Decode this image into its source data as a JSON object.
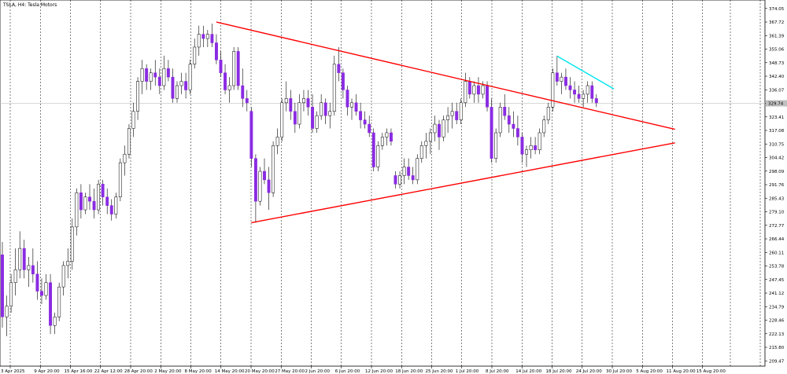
{
  "chart_data": {
    "type": "candlestick",
    "title": "TSLA, H4: Tesla Motors",
    "ylim": [
      207.0,
      378.0
    ],
    "y_ticks": [
      209.47,
      215.8,
      222.13,
      228.46,
      234.79,
      241.12,
      247.45,
      253.78,
      260.11,
      266.44,
      272.77,
      279.1,
      285.43,
      291.76,
      298.09,
      304.42,
      310.75,
      317.08,
      323.41,
      329.74,
      336.07,
      342.4,
      348.73,
      355.06,
      361.39,
      367.72,
      374.05
    ],
    "x_ticks": [
      "3 Apr 2025",
      "9 Apr 20:00",
      "15 Apr 16:00",
      "22 Apr 12:00",
      "28 Apr 20:00",
      "2 May 20:00",
      "8 May 20:00",
      "14 May 20:00",
      "20 May 20:00",
      "27 May 20:00",
      "2 Jun 20:00",
      "6 Jun 20:00",
      "12 Jun 20:00",
      "18 Jun 20:00",
      "25 Jun 20:00",
      "1 Jul 20:00",
      "8 Jul 20:00",
      "14 Jul 20:00",
      "18 Jul 20:00",
      "24 Jul 20:00",
      "30 Jul 20:00",
      "5 Aug 20:00",
      "11 Aug 20:00",
      "15 Aug 20:00"
    ],
    "current_price": 329.74,
    "bull_color": "#ffffff",
    "bear_color": "#8a2be2",
    "wick_color": "#000000",
    "trendline_color_red": "#ff0000",
    "trendline_color_cyan": "#00e5ee",
    "candles": [
      {
        "t": 0,
        "o": 259,
        "h": 265,
        "l": 225,
        "c": 230
      },
      {
        "t": 1,
        "o": 230,
        "h": 240,
        "l": 221,
        "c": 235
      },
      {
        "t": 2,
        "o": 235,
        "h": 250,
        "l": 232,
        "c": 246
      },
      {
        "t": 3,
        "o": 246,
        "h": 262,
        "l": 240,
        "c": 252
      },
      {
        "t": 4,
        "o": 252,
        "h": 270,
        "l": 248,
        "c": 262
      },
      {
        "t": 5,
        "o": 262,
        "h": 266,
        "l": 248,
        "c": 252
      },
      {
        "t": 6,
        "o": 252,
        "h": 258,
        "l": 244,
        "c": 254
      },
      {
        "t": 7,
        "o": 254,
        "h": 262,
        "l": 246,
        "c": 250
      },
      {
        "t": 8,
        "o": 250,
        "h": 256,
        "l": 238,
        "c": 242
      },
      {
        "t": 9,
        "o": 242,
        "h": 248,
        "l": 236,
        "c": 240
      },
      {
        "t": 10,
        "o": 240,
        "h": 250,
        "l": 238,
        "c": 246
      },
      {
        "t": 11,
        "o": 246,
        "h": 250,
        "l": 222,
        "c": 226
      },
      {
        "t": 12,
        "o": 226,
        "h": 232,
        "l": 222,
        "c": 230
      },
      {
        "t": 13,
        "o": 230,
        "h": 246,
        "l": 228,
        "c": 244
      },
      {
        "t": 14,
        "o": 244,
        "h": 256,
        "l": 240,
        "c": 254
      },
      {
        "t": 15,
        "o": 254,
        "h": 262,
        "l": 248,
        "c": 256
      },
      {
        "t": 16,
        "o": 256,
        "h": 276,
        "l": 252,
        "c": 272
      },
      {
        "t": 17,
        "o": 272,
        "h": 290,
        "l": 268,
        "c": 288
      },
      {
        "t": 18,
        "o": 288,
        "h": 292,
        "l": 276,
        "c": 280
      },
      {
        "t": 19,
        "o": 280,
        "h": 288,
        "l": 278,
        "c": 286
      },
      {
        "t": 20,
        "o": 286,
        "h": 292,
        "l": 280,
        "c": 284
      },
      {
        "t": 21,
        "o": 284,
        "h": 290,
        "l": 276,
        "c": 280
      },
      {
        "t": 22,
        "o": 280,
        "h": 294,
        "l": 278,
        "c": 292
      },
      {
        "t": 23,
        "o": 292,
        "h": 294,
        "l": 282,
        "c": 286
      },
      {
        "t": 24,
        "o": 286,
        "h": 290,
        "l": 278,
        "c": 282
      },
      {
        "t": 25,
        "o": 282,
        "h": 285,
        "l": 275,
        "c": 278
      },
      {
        "t": 26,
        "o": 278,
        "h": 288,
        "l": 276,
        "c": 286
      },
      {
        "t": 27,
        "o": 286,
        "h": 304,
        "l": 284,
        "c": 302
      },
      {
        "t": 28,
        "o": 302,
        "h": 310,
        "l": 296,
        "c": 306
      },
      {
        "t": 29,
        "o": 306,
        "h": 320,
        "l": 304,
        "c": 318
      },
      {
        "t": 30,
        "o": 318,
        "h": 330,
        "l": 314,
        "c": 326
      },
      {
        "t": 31,
        "o": 326,
        "h": 342,
        "l": 322,
        "c": 340
      },
      {
        "t": 32,
        "o": 340,
        "h": 350,
        "l": 334,
        "c": 346
      },
      {
        "t": 33,
        "o": 346,
        "h": 348,
        "l": 336,
        "c": 340
      },
      {
        "t": 34,
        "o": 340,
        "h": 346,
        "l": 336,
        "c": 344
      },
      {
        "t": 35,
        "o": 344,
        "h": 350,
        "l": 338,
        "c": 342
      },
      {
        "t": 36,
        "o": 342,
        "h": 346,
        "l": 334,
        "c": 338
      },
      {
        "t": 37,
        "o": 338,
        "h": 352,
        "l": 336,
        "c": 346
      },
      {
        "t": 38,
        "o": 346,
        "h": 350,
        "l": 340,
        "c": 342
      },
      {
        "t": 39,
        "o": 342,
        "h": 346,
        "l": 330,
        "c": 332
      },
      {
        "t": 40,
        "o": 332,
        "h": 340,
        "l": 330,
        "c": 338
      },
      {
        "t": 41,
        "o": 338,
        "h": 344,
        "l": 334,
        "c": 340
      },
      {
        "t": 42,
        "o": 340,
        "h": 344,
        "l": 332,
        "c": 336
      },
      {
        "t": 43,
        "o": 336,
        "h": 350,
        "l": 334,
        "c": 348
      },
      {
        "t": 44,
        "o": 348,
        "h": 360,
        "l": 346,
        "c": 356
      },
      {
        "t": 45,
        "o": 356,
        "h": 366,
        "l": 352,
        "c": 362
      },
      {
        "t": 46,
        "o": 362,
        "h": 366,
        "l": 356,
        "c": 360
      },
      {
        "t": 47,
        "o": 360,
        "h": 364,
        "l": 356,
        "c": 362
      },
      {
        "t": 48,
        "o": 362,
        "h": 367,
        "l": 356,
        "c": 358
      },
      {
        "t": 49,
        "o": 358,
        "h": 362,
        "l": 348,
        "c": 350
      },
      {
        "t": 50,
        "o": 350,
        "h": 354,
        "l": 342,
        "c": 344
      },
      {
        "t": 51,
        "o": 344,
        "h": 348,
        "l": 334,
        "c": 336
      },
      {
        "t": 52,
        "o": 336,
        "h": 342,
        "l": 330,
        "c": 338
      },
      {
        "t": 53,
        "o": 338,
        "h": 356,
        "l": 336,
        "c": 354
      },
      {
        "t": 54,
        "o": 354,
        "h": 356,
        "l": 336,
        "c": 338
      },
      {
        "t": 55,
        "o": 338,
        "h": 346,
        "l": 328,
        "c": 332
      },
      {
        "t": 56,
        "o": 332,
        "h": 336,
        "l": 326,
        "c": 330
      },
      {
        "t": 57,
        "o": 326,
        "h": 328,
        "l": 300,
        "c": 304
      },
      {
        "t": 58,
        "o": 304,
        "h": 306,
        "l": 274,
        "c": 284
      },
      {
        "t": 59,
        "o": 284,
        "h": 300,
        "l": 282,
        "c": 298
      },
      {
        "t": 60,
        "o": 298,
        "h": 304,
        "l": 292,
        "c": 294
      },
      {
        "t": 61,
        "o": 294,
        "h": 300,
        "l": 280,
        "c": 288
      },
      {
        "t": 62,
        "o": 288,
        "h": 312,
        "l": 286,
        "c": 310
      },
      {
        "t": 63,
        "o": 310,
        "h": 318,
        "l": 306,
        "c": 314
      },
      {
        "t": 64,
        "o": 314,
        "h": 332,
        "l": 312,
        "c": 330
      },
      {
        "t": 65,
        "o": 330,
        "h": 340,
        "l": 326,
        "c": 332
      },
      {
        "t": 66,
        "o": 332,
        "h": 336,
        "l": 322,
        "c": 326
      },
      {
        "t": 67,
        "o": 326,
        "h": 330,
        "l": 316,
        "c": 320
      },
      {
        "t": 68,
        "o": 320,
        "h": 334,
        "l": 318,
        "c": 330
      },
      {
        "t": 69,
        "o": 330,
        "h": 336,
        "l": 326,
        "c": 332
      },
      {
        "t": 70,
        "o": 332,
        "h": 336,
        "l": 324,
        "c": 328
      },
      {
        "t": 71,
        "o": 328,
        "h": 334,
        "l": 316,
        "c": 318
      },
      {
        "t": 72,
        "o": 318,
        "h": 326,
        "l": 316,
        "c": 324
      },
      {
        "t": 73,
        "o": 324,
        "h": 334,
        "l": 322,
        "c": 330
      },
      {
        "t": 74,
        "o": 330,
        "h": 332,
        "l": 320,
        "c": 324
      },
      {
        "t": 75,
        "o": 324,
        "h": 330,
        "l": 318,
        "c": 326
      },
      {
        "t": 76,
        "o": 326,
        "h": 352,
        "l": 324,
        "c": 348
      },
      {
        "t": 77,
        "o": 348,
        "h": 356,
        "l": 340,
        "c": 344
      },
      {
        "t": 78,
        "o": 344,
        "h": 346,
        "l": 332,
        "c": 336
      },
      {
        "t": 79,
        "o": 336,
        "h": 338,
        "l": 324,
        "c": 328
      },
      {
        "t": 80,
        "o": 328,
        "h": 332,
        "l": 322,
        "c": 330
      },
      {
        "t": 81,
        "o": 330,
        "h": 334,
        "l": 324,
        "c": 326
      },
      {
        "t": 82,
        "o": 326,
        "h": 330,
        "l": 318,
        "c": 322
      },
      {
        "t": 83,
        "o": 322,
        "h": 326,
        "l": 318,
        "c": 320
      },
      {
        "t": 84,
        "o": 320,
        "h": 324,
        "l": 314,
        "c": 316
      },
      {
        "t": 85,
        "o": 316,
        "h": 318,
        "l": 298,
        "c": 300
      },
      {
        "t": 86,
        "o": 300,
        "h": 312,
        "l": 298,
        "c": 310
      },
      {
        "t": 87,
        "o": 310,
        "h": 316,
        "l": 308,
        "c": 314
      },
      {
        "t": 88,
        "o": 314,
        "h": 318,
        "l": 310,
        "c": 316
      },
      {
        "t": 89,
        "o": 316,
        "h": 318,
        "l": 310,
        "c": 312
      },
      {
        "t": 90,
        "o": 296,
        "h": 298,
        "l": 290,
        "c": 292
      },
      {
        "t": 91,
        "o": 292,
        "h": 298,
        "l": 290,
        "c": 296
      },
      {
        "t": 92,
        "o": 296,
        "h": 304,
        "l": 292,
        "c": 300
      },
      {
        "t": 93,
        "o": 300,
        "h": 304,
        "l": 294,
        "c": 296
      },
      {
        "t": 94,
        "o": 296,
        "h": 300,
        "l": 292,
        "c": 294
      },
      {
        "t": 95,
        "o": 294,
        "h": 306,
        "l": 292,
        "c": 304
      },
      {
        "t": 96,
        "o": 304,
        "h": 312,
        "l": 302,
        "c": 310
      },
      {
        "t": 97,
        "o": 310,
        "h": 316,
        "l": 304,
        "c": 312
      },
      {
        "t": 98,
        "o": 312,
        "h": 318,
        "l": 306,
        "c": 316
      },
      {
        "t": 99,
        "o": 316,
        "h": 324,
        "l": 312,
        "c": 320
      },
      {
        "t": 100,
        "o": 320,
        "h": 322,
        "l": 308,
        "c": 314
      },
      {
        "t": 101,
        "o": 314,
        "h": 324,
        "l": 312,
        "c": 322
      },
      {
        "t": 102,
        "o": 322,
        "h": 328,
        "l": 316,
        "c": 324
      },
      {
        "t": 103,
        "o": 324,
        "h": 330,
        "l": 318,
        "c": 326
      },
      {
        "t": 104,
        "o": 326,
        "h": 330,
        "l": 320,
        "c": 322
      },
      {
        "t": 105,
        "o": 322,
        "h": 332,
        "l": 320,
        "c": 330
      },
      {
        "t": 106,
        "o": 330,
        "h": 344,
        "l": 328,
        "c": 340
      },
      {
        "t": 107,
        "o": 340,
        "h": 342,
        "l": 332,
        "c": 334
      },
      {
        "t": 108,
        "o": 334,
        "h": 340,
        "l": 330,
        "c": 338
      },
      {
        "t": 109,
        "o": 338,
        "h": 342,
        "l": 330,
        "c": 334
      },
      {
        "t": 110,
        "o": 334,
        "h": 340,
        "l": 332,
        "c": 338
      },
      {
        "t": 111,
        "o": 338,
        "h": 340,
        "l": 326,
        "c": 328
      },
      {
        "t": 112,
        "o": 328,
        "h": 332,
        "l": 302,
        "c": 304
      },
      {
        "t": 113,
        "o": 304,
        "h": 318,
        "l": 302,
        "c": 316
      },
      {
        "t": 114,
        "o": 316,
        "h": 330,
        "l": 314,
        "c": 328
      },
      {
        "t": 115,
        "o": 328,
        "h": 334,
        "l": 322,
        "c": 324
      },
      {
        "t": 116,
        "o": 324,
        "h": 328,
        "l": 316,
        "c": 320
      },
      {
        "t": 117,
        "o": 320,
        "h": 326,
        "l": 314,
        "c": 318
      },
      {
        "t": 118,
        "o": 318,
        "h": 324,
        "l": 310,
        "c": 314
      },
      {
        "t": 119,
        "o": 314,
        "h": 316,
        "l": 302,
        "c": 306
      },
      {
        "t": 120,
        "o": 306,
        "h": 310,
        "l": 300,
        "c": 308
      },
      {
        "t": 121,
        "o": 308,
        "h": 314,
        "l": 304,
        "c": 310
      },
      {
        "t": 122,
        "o": 310,
        "h": 314,
        "l": 306,
        "c": 308
      },
      {
        "t": 123,
        "o": 308,
        "h": 318,
        "l": 306,
        "c": 316
      },
      {
        "t": 124,
        "o": 316,
        "h": 324,
        "l": 314,
        "c": 322
      },
      {
        "t": 125,
        "o": 322,
        "h": 330,
        "l": 320,
        "c": 328
      },
      {
        "t": 126,
        "o": 328,
        "h": 346,
        "l": 326,
        "c": 344
      },
      {
        "t": 127,
        "o": 344,
        "h": 352,
        "l": 338,
        "c": 340
      },
      {
        "t": 128,
        "o": 340,
        "h": 344,
        "l": 334,
        "c": 342
      },
      {
        "t": 129,
        "o": 342,
        "h": 346,
        "l": 336,
        "c": 338
      },
      {
        "t": 130,
        "o": 338,
        "h": 342,
        "l": 332,
        "c": 336
      },
      {
        "t": 131,
        "o": 336,
        "h": 340,
        "l": 330,
        "c": 334
      },
      {
        "t": 132,
        "o": 334,
        "h": 338,
        "l": 330,
        "c": 332
      },
      {
        "t": 133,
        "o": 332,
        "h": 336,
        "l": 328,
        "c": 334
      },
      {
        "t": 134,
        "o": 334,
        "h": 340,
        "l": 330,
        "c": 338
      },
      {
        "t": 135,
        "o": 338,
        "h": 340,
        "l": 330,
        "c": 332
      },
      {
        "t": 136,
        "o": 332,
        "h": 334,
        "l": 328,
        "c": 330
      }
    ],
    "trendlines": [
      {
        "t1": 49,
        "p1": 367.7,
        "t2": 154,
        "p2": 317.6,
        "color": "red"
      },
      {
        "t1": 57,
        "p1": 274.0,
        "t2": 154,
        "p2": 311.3,
        "color": "red"
      },
      {
        "t1": 127,
        "p1": 351.8,
        "t2": 140,
        "p2": 336.5,
        "color": "cyan"
      }
    ]
  }
}
